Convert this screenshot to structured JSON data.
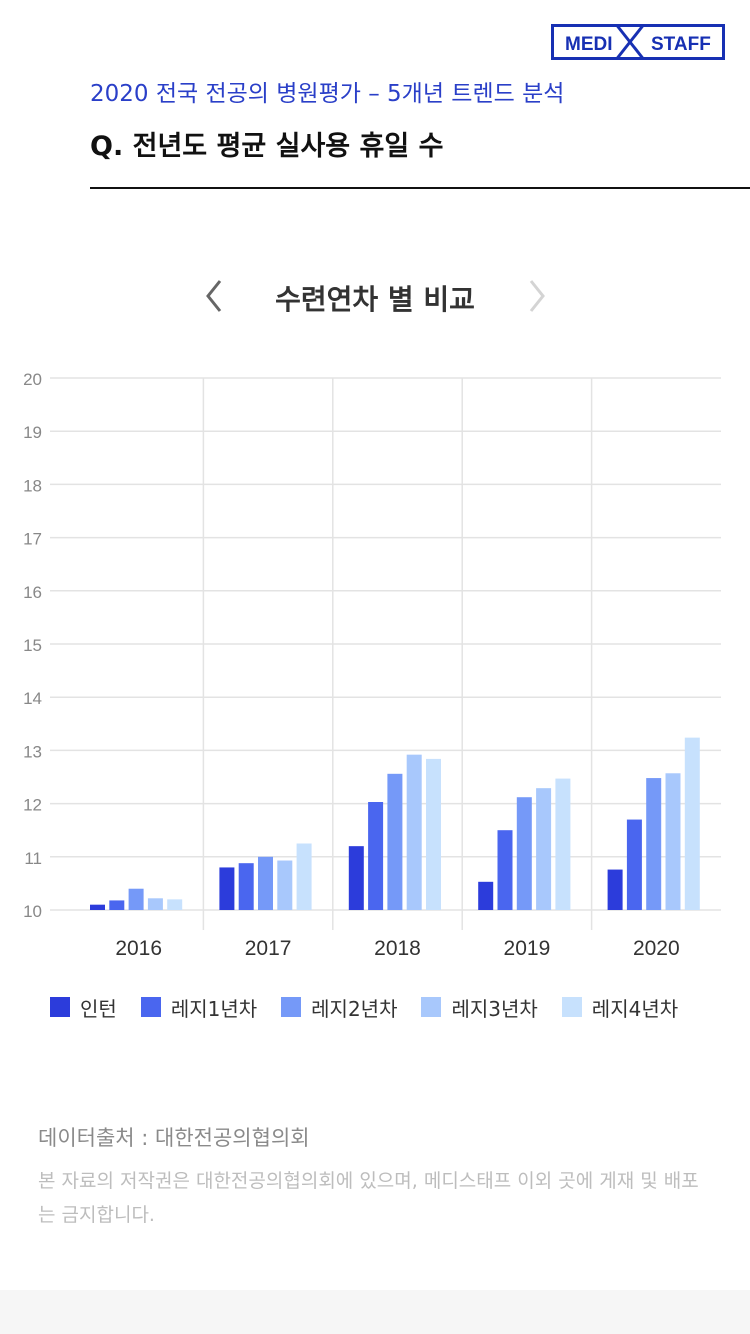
{
  "logo": {
    "left": "MEDI",
    "right": "STAFF",
    "color": "#1730b3"
  },
  "header": {
    "subtitle": "2020 전국 전공의 병원평가 – 5개년 트렌드 분석",
    "question": "Q. 전년도 평균 실사용 휴일 수"
  },
  "nav": {
    "title": "수련연차 별 비교",
    "prev_icon": "chevron-left-icon",
    "next_icon": "chevron-right-icon"
  },
  "chart_data": {
    "type": "bar",
    "categories": [
      "2016",
      "2017",
      "2018",
      "2019",
      "2020"
    ],
    "ylim": [
      10,
      20
    ],
    "yticks": [
      10,
      11,
      12,
      13,
      14,
      15,
      16,
      17,
      18,
      19,
      20
    ],
    "grid": true,
    "legend_position": "bottom-left",
    "series": [
      {
        "name": "인턴",
        "color": "#2c3cdb",
        "values": [
          10.1,
          10.8,
          11.2,
          10.53,
          10.76
        ]
      },
      {
        "name": "레지1년차",
        "color": "#4a66ef",
        "values": [
          10.18,
          10.88,
          12.03,
          11.5,
          11.7
        ]
      },
      {
        "name": "레지2년차",
        "color": "#7599f8",
        "values": [
          10.4,
          11.0,
          12.56,
          12.12,
          12.48
        ]
      },
      {
        "name": "레지3년차",
        "color": "#a8c8fc",
        "values": [
          10.22,
          10.93,
          12.92,
          12.29,
          12.57
        ]
      },
      {
        "name": "레지4년차",
        "color": "#c7e1fd",
        "values": [
          10.2,
          11.25,
          12.84,
          12.47,
          13.24
        ]
      }
    ]
  },
  "footer": {
    "source": "데이터출처 : 대한전공의협의회",
    "copyright": "본 자료의 저작권은 대한전공의협의회에 있으며, 메디스태프 이외 곳에 게재 및 배포는 금지합니다."
  }
}
